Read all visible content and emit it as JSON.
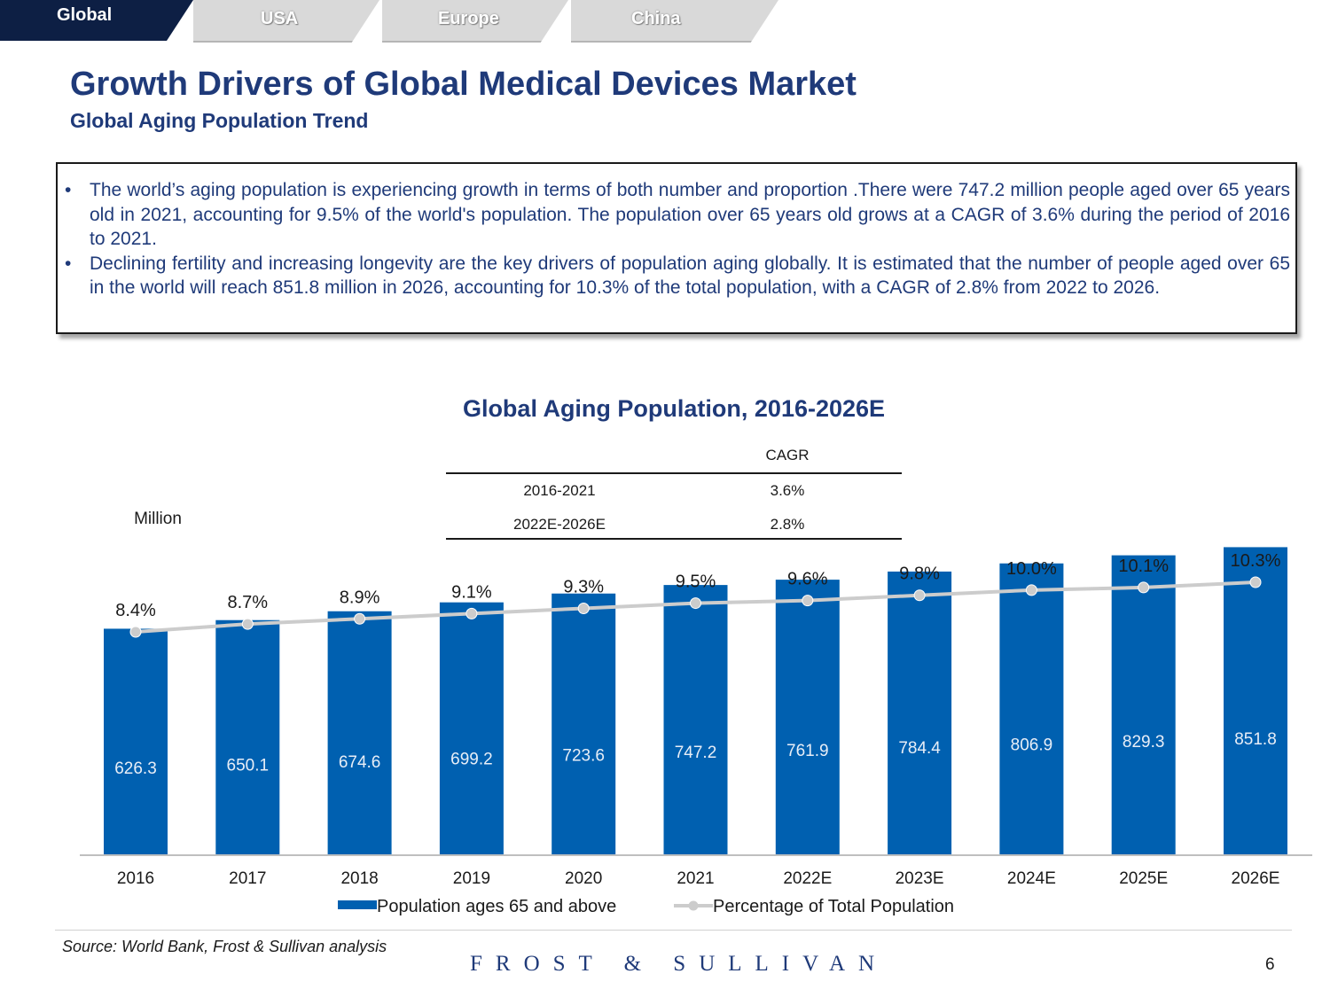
{
  "tabs": [
    {
      "label": "Global",
      "active": true
    },
    {
      "label": "USA",
      "active": false
    },
    {
      "label": "Europe",
      "active": false
    },
    {
      "label": "China",
      "active": false
    }
  ],
  "header": {
    "title": "Growth Drivers of Global Medical Devices Market",
    "subtitle": "Global Aging Population Trend"
  },
  "summary": {
    "bullets": [
      "The world’s aging population is experiencing growth in terms of both number and proportion .There were 747.2 million people aged over 65 years old in 2021, accounting for 9.5% of the world's population. The population over 65 years old grows at a CAGR of 3.6% during the period of 2016 to 2021.",
      "Declining fertility and increasing longevity are the key drivers of population aging globally. It is estimated that the number of people aged over 65 in the world will reach 851.8 million in 2026, accounting for 10.3% of the total population, with a CAGR of 2.8% from 2022 to 2026."
    ]
  },
  "chart_data": {
    "type": "bar",
    "title": "Global Aging Population, 2016-2026E",
    "ylabel": "Million",
    "xlabel": "",
    "categories": [
      "2016",
      "2017",
      "2018",
      "2019",
      "2020",
      "2021",
      "2022E",
      "2023E",
      "2024E",
      "2025E",
      "2026E"
    ],
    "series": [
      {
        "name": "Population ages 65 and above",
        "type": "bar",
        "values": [
          626.3,
          650.1,
          674.6,
          699.2,
          723.6,
          747.2,
          761.9,
          784.4,
          806.9,
          829.3,
          851.8
        ],
        "color": "#0060b0"
      },
      {
        "name": "Percentage of Total Population",
        "type": "line",
        "values": [
          8.4,
          8.7,
          8.9,
          9.1,
          9.3,
          9.5,
          9.6,
          9.8,
          10.0,
          10.1,
          10.3
        ],
        "labels": [
          "8.4%",
          "8.7%",
          "8.9%",
          "9.1%",
          "9.3%",
          "9.5%",
          "9.6%",
          "9.8%",
          "10.0%",
          "10.1%",
          "10.3%"
        ],
        "color": "#cccccc"
      }
    ],
    "ylim": [
      0,
      870
    ],
    "cagr_table": {
      "header": "CAGR",
      "rows": [
        {
          "period": "2016-2021",
          "value": "3.6%"
        },
        {
          "period": "2022E-2026E",
          "value": "2.8%"
        }
      ]
    },
    "legend_position": "bottom",
    "grid": false
  },
  "footer": {
    "source": "Source: World Bank, Frost & Sullivan analysis",
    "brand": "FROST & SULLIVAN",
    "page_number": "6"
  },
  "colors": {
    "navy": "#1f3a79",
    "tab_active": "#0d1f44",
    "tab_inactive": "#d9d9d9",
    "bar": "#0060b0",
    "line": "#cccccc"
  }
}
